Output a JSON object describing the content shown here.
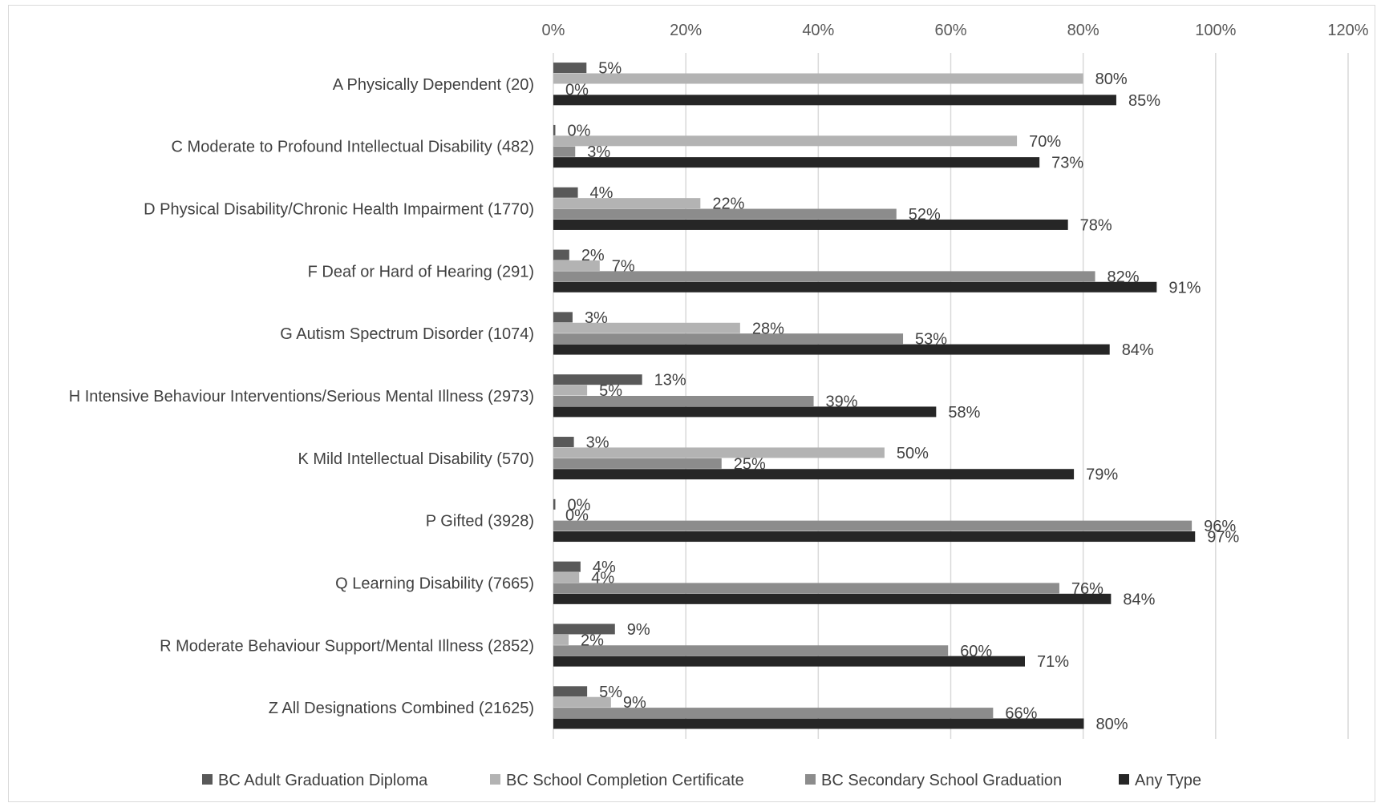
{
  "chart_data": {
    "type": "bar",
    "orientation": "horizontal",
    "title": "",
    "xlabel": "",
    "ylabel": "",
    "xlim": [
      0,
      120
    ],
    "x_ticks": [
      "0%",
      "20%",
      "40%",
      "60%",
      "80%",
      "100%",
      "120%"
    ],
    "x_tick_values": [
      0,
      20,
      40,
      60,
      80,
      100,
      120
    ],
    "grid": "vertical",
    "legend_position": "bottom",
    "categories": [
      "A Physically Dependent (20)",
      "C Moderate to Profound Intellectual Disability (482)",
      "D Physical Disability/Chronic Health Impairment (1770)",
      "F Deaf or Hard of Hearing (291)",
      "G Autism Spectrum Disorder (1074)",
      "H Intensive Behaviour Interventions/Serious Mental Illness (2973)",
      "K Mild Intellectual Disability (570)",
      "P Gifted (3928)",
      "Q Learning Disability (7665)",
      "R Moderate Behaviour Support/Mental Illness (2852)",
      "Z All Designations Combined (21625)"
    ],
    "series": [
      {
        "name": "BC Adult Graduation Diploma",
        "color": "#595959",
        "values": [
          5,
          0.3,
          3.7,
          2.4,
          2.9,
          13.4,
          3.1,
          0.3,
          4.1,
          9.3,
          5.1
        ],
        "labels": [
          "5%",
          "0%",
          "4%",
          "2%",
          "3%",
          "13%",
          "3%",
          "0%",
          "4%",
          "9%",
          "5%"
        ]
      },
      {
        "name": "BC School Completion Certificate",
        "color": "#b3b3b3",
        "values": [
          80,
          70,
          22.2,
          7,
          28.2,
          5.1,
          50,
          0,
          3.9,
          2.3,
          8.7
        ],
        "labels": [
          "80%",
          "70%",
          "22%",
          "7%",
          "28%",
          "5%",
          "50%",
          "0%",
          "4%",
          "2%",
          "9%"
        ]
      },
      {
        "name": "BC Secondary School Graduation",
        "color": "#8c8c8c",
        "values": [
          0,
          3.3,
          51.8,
          81.8,
          52.8,
          39.3,
          25.4,
          96.4,
          76.4,
          59.6,
          66.4
        ],
        "labels": [
          "0%",
          "3%",
          "52%",
          "82%",
          "53%",
          "39%",
          "25%",
          "96%",
          "76%",
          "60%",
          "66%"
        ]
      },
      {
        "name": "Any Type",
        "color": "#262626",
        "values": [
          85,
          73.4,
          77.7,
          91.1,
          84,
          57.8,
          78.6,
          96.9,
          84.2,
          71.2,
          80.1
        ],
        "labels": [
          "85%",
          "73%",
          "78%",
          "91%",
          "84%",
          "58%",
          "79%",
          "97%",
          "84%",
          "71%",
          "80%"
        ]
      }
    ]
  }
}
